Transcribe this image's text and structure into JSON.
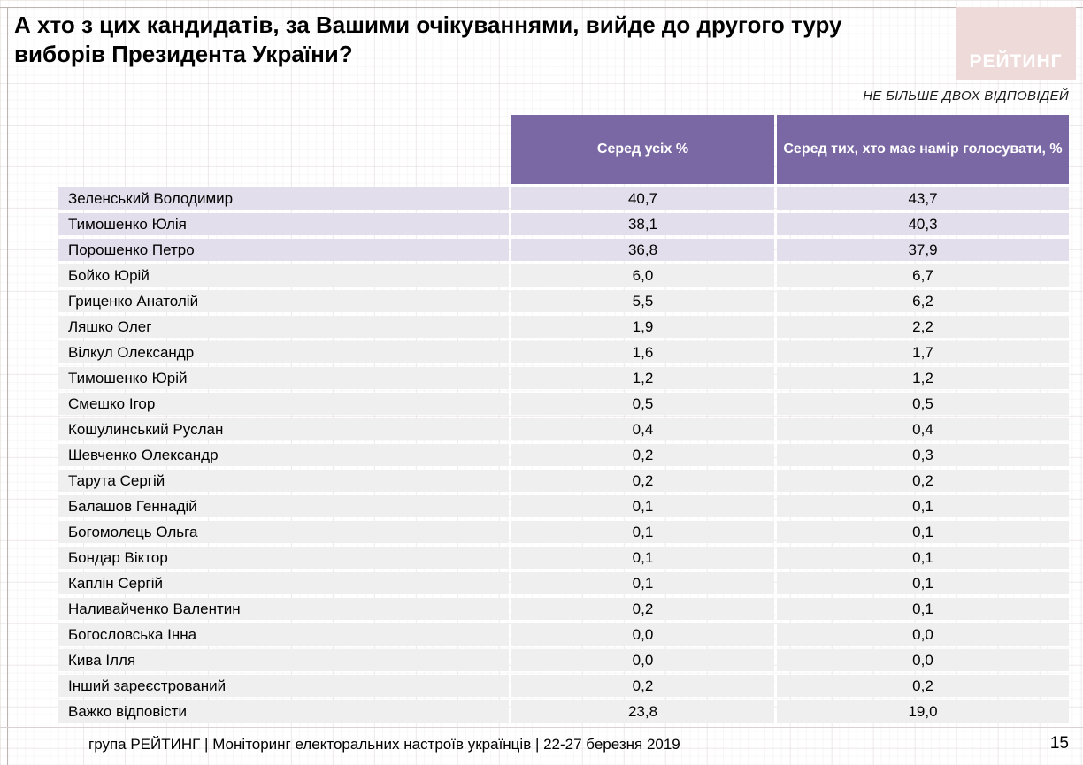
{
  "page": {
    "title": "А хто з цих кандидатів, за Вашими очікуваннями, вийде до другого туру виборів Президента України?",
    "note": "НЕ БІЛЬШЕ ДВОХ ВІДПОВІДЕЙ",
    "logo_text": "РЕЙТИНГ",
    "footer": "група РЕЙТИНГ | Моніторинг електоральних настроїв українців  |  22-27 березня 2019",
    "page_number": "15"
  },
  "colors": {
    "header_purple": "#7a68a5",
    "row_lavender": "#e2deeb",
    "row_gray": "#f0efef",
    "logo_pink": "#eedbd9"
  },
  "table": {
    "columns": [
      "Серед усіх %",
      "Серед тих, хто має намір голосувати, %"
    ],
    "highlight_count": 3,
    "rows": [
      {
        "name": "Зеленський Володимир",
        "all": "40,7",
        "voters": "43,7"
      },
      {
        "name": "Тимошенко Юлія",
        "all": "38,1",
        "voters": "40,3"
      },
      {
        "name": "Порошенко Петро",
        "all": "36,8",
        "voters": "37,9"
      },
      {
        "name": "Бойко Юрій",
        "all": "6,0",
        "voters": "6,7"
      },
      {
        "name": "Гриценко Анатолій",
        "all": "5,5",
        "voters": "6,2"
      },
      {
        "name": "Ляшко Олег",
        "all": "1,9",
        "voters": "2,2"
      },
      {
        "name": "Вілкул Олександр",
        "all": "1,6",
        "voters": "1,7"
      },
      {
        "name": "Тимошенко Юрій",
        "all": "1,2",
        "voters": "1,2"
      },
      {
        "name": "Смешко Ігор",
        "all": "0,5",
        "voters": "0,5"
      },
      {
        "name": "Кошулинський Руслан",
        "all": "0,4",
        "voters": "0,4"
      },
      {
        "name": "Шевченко Олександр",
        "all": "0,2",
        "voters": "0,3"
      },
      {
        "name": "Тарута Сергій",
        "all": "0,2",
        "voters": "0,2"
      },
      {
        "name": "Балашов Геннадій",
        "all": "0,1",
        "voters": "0,1"
      },
      {
        "name": "Богомолець Ольга",
        "all": "0,1",
        "voters": "0,1"
      },
      {
        "name": "Бондар Віктор",
        "all": "0,1",
        "voters": "0,1"
      },
      {
        "name": "Каплін Сергій",
        "all": "0,1",
        "voters": "0,1"
      },
      {
        "name": "Наливайченко Валентин",
        "all": "0,2",
        "voters": "0,1"
      },
      {
        "name": "Богословська Інна",
        "all": "0,0",
        "voters": "0,0"
      },
      {
        "name": "Кива Ілля",
        "all": "0,0",
        "voters": "0,0"
      },
      {
        "name": "Інший зареєстрований",
        "all": "0,2",
        "voters": "0,2"
      },
      {
        "name": "Важко відповісти",
        "all": "23,8",
        "voters": "19,0"
      }
    ]
  }
}
